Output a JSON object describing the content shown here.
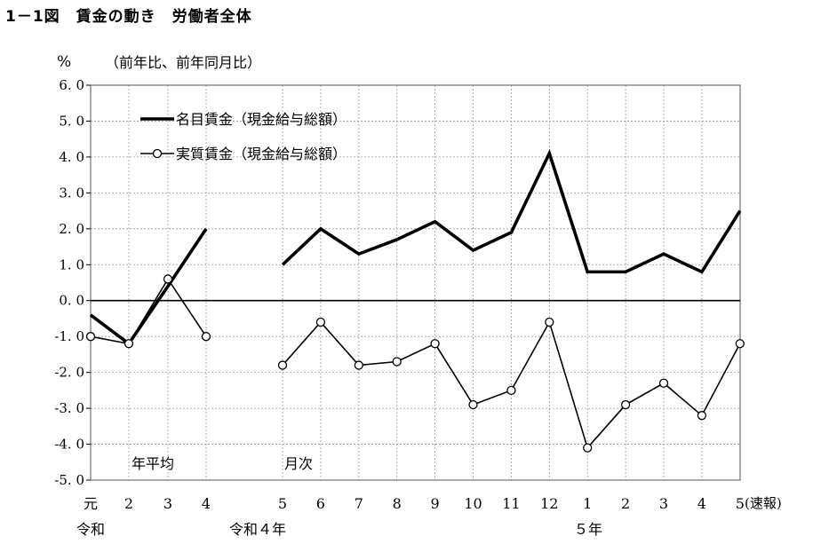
{
  "figure_title": "1－1図　賃金の動き　労働者全体",
  "chart_data": {
    "type": "line",
    "y_unit": "%",
    "y_note": "（前年比、前年同月比）",
    "ylim": [
      -5.0,
      6.0
    ],
    "y_ticks": [
      "6.0",
      "5.0",
      "4.0",
      "3.0",
      "2.0",
      "1.0",
      "0.0",
      "-1.0",
      "-2.0",
      "-3.0",
      "-4.0",
      "-5.0"
    ],
    "grid": true,
    "legend_position": "top-left",
    "x_tick_labels": [
      "元",
      "2",
      "3",
      "4",
      "5",
      "6",
      "7",
      "8",
      "9",
      "10",
      "11",
      "12",
      "1",
      "2",
      "3",
      "4",
      "5"
    ],
    "x_suffix": "(速報)",
    "x_group_labels": [
      "令和",
      "令和４年",
      "５年"
    ],
    "section_labels": [
      "年平均",
      "月次"
    ],
    "series": [
      {
        "name": "名目賃金（現金給与総額）",
        "annual": [
          -0.4,
          -1.2,
          0.4,
          2.0
        ],
        "monthly": [
          1.0,
          2.0,
          1.3,
          1.7,
          2.2,
          1.4,
          1.9,
          4.1,
          0.8,
          0.8,
          1.3,
          0.8,
          2.5
        ]
      },
      {
        "name": "実質賃金（現金給与総額）",
        "annual": [
          -1.0,
          -1.2,
          0.6,
          -1.0
        ],
        "monthly": [
          -1.8,
          -0.6,
          -1.8,
          -1.7,
          -1.2,
          -2.9,
          -2.5,
          -0.6,
          -4.1,
          -2.9,
          -2.3,
          -3.2,
          -1.2
        ]
      }
    ]
  }
}
